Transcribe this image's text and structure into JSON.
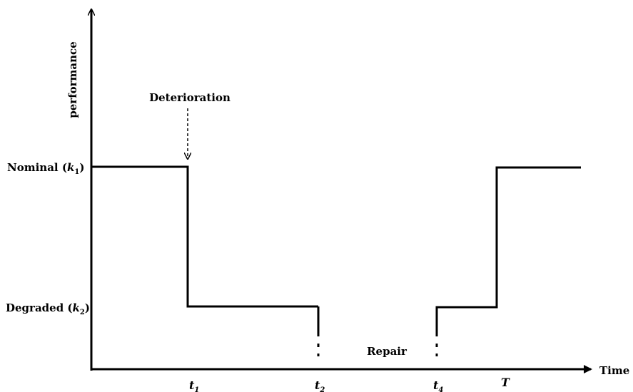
{
  "diagram": {
    "y_axis_label": "performance",
    "x_axis_label": "Time",
    "levels": {
      "nominal": {
        "label": "Nominal (",
        "symbol": "k",
        "sub": "1",
        "close": ")"
      },
      "degraded": {
        "label": "Degraded (",
        "symbol": "k",
        "sub": "2",
        "close": ")"
      }
    },
    "annotations": {
      "deterioration": "Deterioration",
      "repair": "Repair"
    },
    "time_marks": [
      {
        "symbol": "t",
        "sub": "1"
      },
      {
        "symbol": "t",
        "sub": "2"
      },
      {
        "symbol": "t",
        "sub": "4"
      },
      {
        "symbol": "T",
        "sub": ""
      }
    ],
    "colors": {
      "line": "#000000",
      "background": "#ffffff"
    }
  }
}
